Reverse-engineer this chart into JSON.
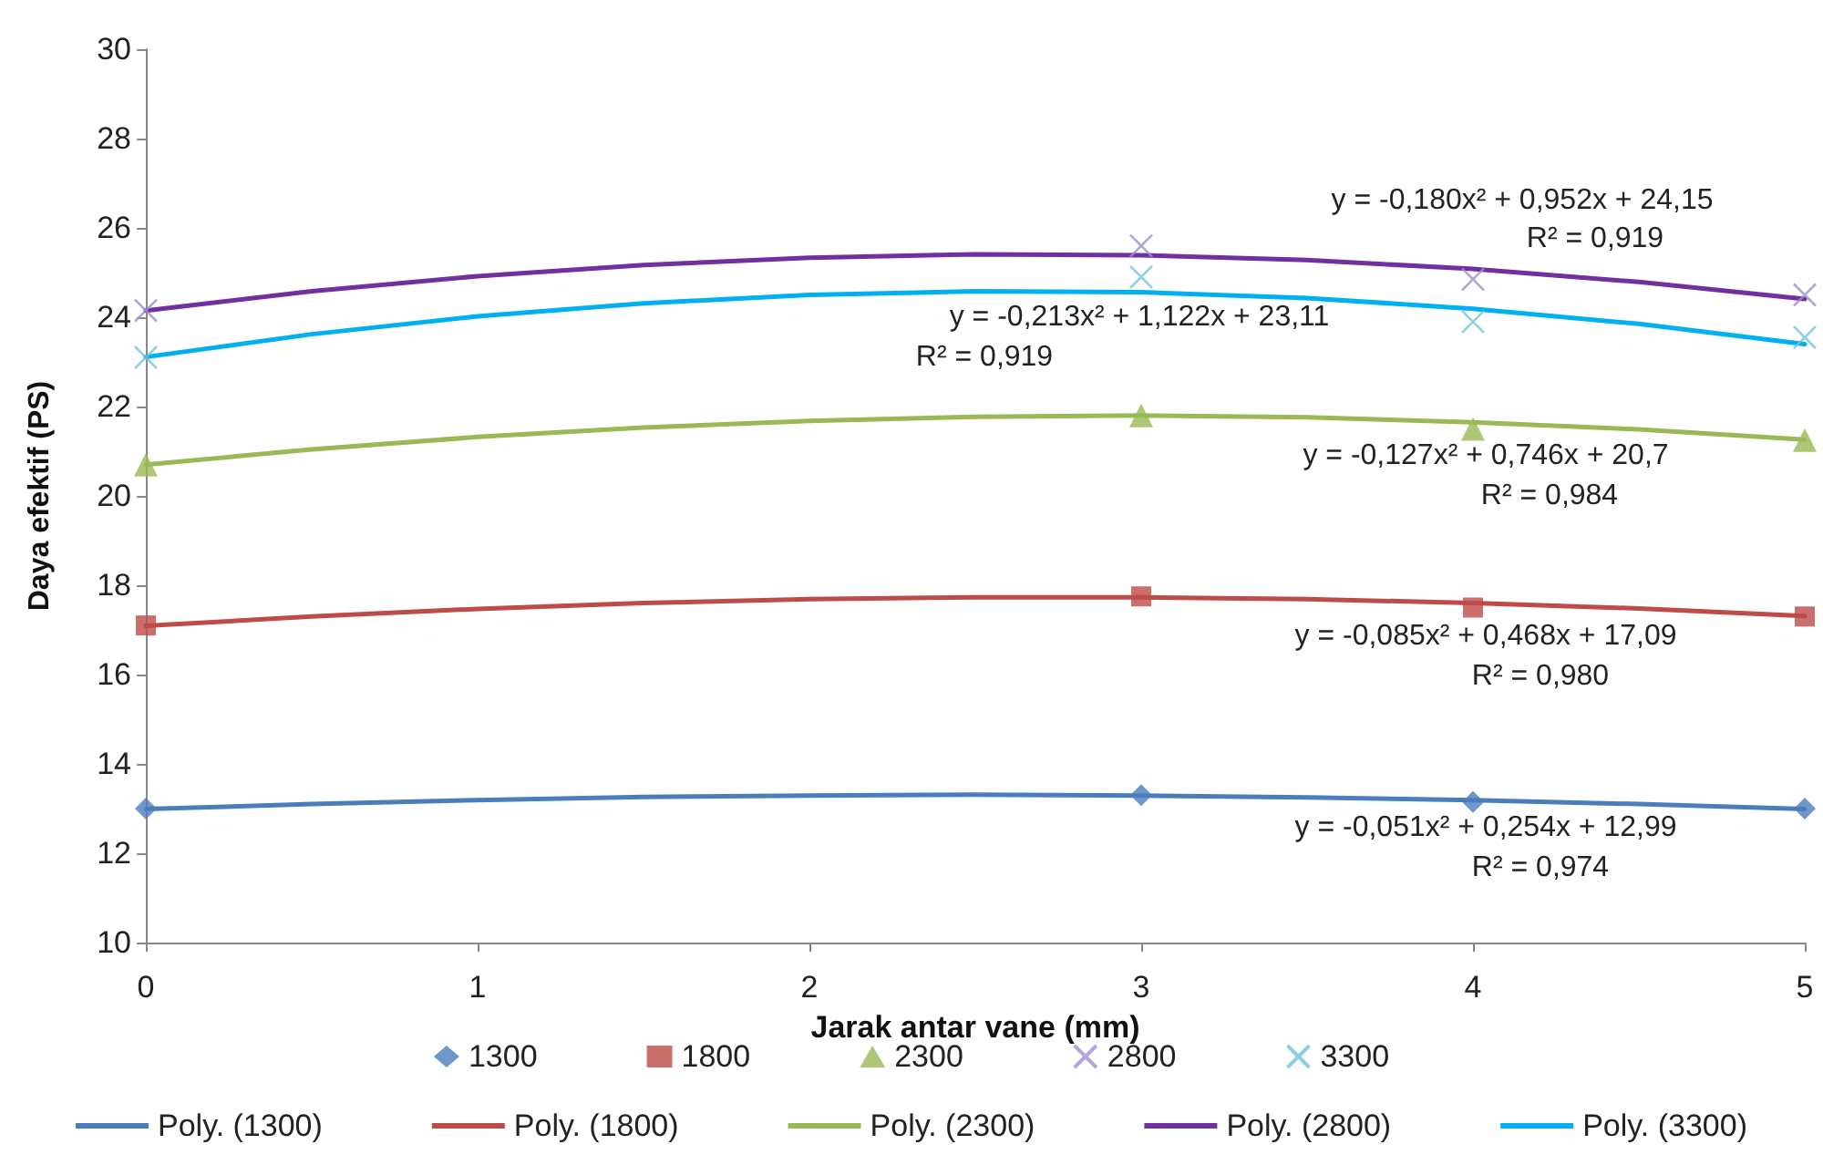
{
  "chart_data": {
    "type": "scatter",
    "xlabel": "Jarak antar vane (mm)",
    "ylabel": "Daya efektif (PS)",
    "xlim": [
      0,
      5
    ],
    "xticks": [
      0,
      1,
      2,
      3,
      4,
      5
    ],
    "ylim": [
      10,
      30
    ],
    "yticks": [
      10,
      12,
      14,
      16,
      18,
      20,
      22,
      24,
      26,
      28,
      30
    ],
    "grid": false,
    "legend": "bottom",
    "series": [
      {
        "name": "1300",
        "marker": "diamond",
        "color": "#4a7ebb",
        "x": [
          0,
          3,
          4,
          5
        ],
        "values": [
          13.0,
          13.3,
          13.15,
          13.0
        ]
      },
      {
        "name": "1800",
        "marker": "square",
        "color": "#be4b48",
        "x": [
          0,
          3,
          4,
          5
        ],
        "values": [
          17.1,
          17.75,
          17.5,
          17.3
        ]
      },
      {
        "name": "2300",
        "marker": "triangle",
        "color": "#98b954",
        "x": [
          0,
          3,
          4,
          5
        ],
        "values": [
          20.7,
          21.8,
          21.5,
          21.25
        ]
      },
      {
        "name": "2800",
        "marker": "cross",
        "color": "#a18fcf",
        "x": [
          0,
          3,
          4,
          5
        ],
        "values": [
          24.15,
          25.6,
          24.85,
          24.5
        ]
      },
      {
        "name": "3300",
        "marker": "cross",
        "color": "#6fc3dc",
        "x": [
          0,
          3,
          4,
          5
        ],
        "values": [
          23.1,
          24.9,
          23.9,
          23.55
        ]
      },
      {
        "name": "Poly. (1300)",
        "type": "line",
        "marker": "none",
        "color": "#4a7ebb",
        "x": [
          0,
          0.5,
          1,
          1.5,
          2,
          2.5,
          3,
          3.5,
          4,
          4.5,
          5
        ],
        "values": [
          12.99,
          13.1,
          13.19,
          13.26,
          13.29,
          13.31,
          13.29,
          13.25,
          13.19,
          13.1,
          12.99
        ]
      },
      {
        "name": "Poly. (1800)",
        "type": "line",
        "marker": "none",
        "color": "#be4b48",
        "x": [
          0,
          0.5,
          1,
          1.5,
          2,
          2.5,
          3,
          3.5,
          4,
          4.5,
          5
        ],
        "values": [
          17.09,
          17.3,
          17.47,
          17.6,
          17.69,
          17.73,
          17.73,
          17.69,
          17.6,
          17.48,
          17.31
        ]
      },
      {
        "name": "Poly. (2300)",
        "type": "line",
        "marker": "none",
        "color": "#98b954",
        "x": [
          0,
          0.5,
          1,
          1.5,
          2,
          2.5,
          3,
          3.5,
          4,
          4.5,
          5
        ],
        "values": [
          20.7,
          21.04,
          21.32,
          21.53,
          21.68,
          21.77,
          21.8,
          21.76,
          21.65,
          21.49,
          21.26
        ]
      },
      {
        "name": "Poly. (2800)",
        "type": "line",
        "marker": "none",
        "color": "#7030a0",
        "x": [
          0,
          0.5,
          1,
          1.5,
          2,
          2.5,
          3,
          3.5,
          4,
          4.5,
          5
        ],
        "values": [
          24.15,
          24.58,
          24.92,
          25.17,
          25.33,
          25.41,
          25.39,
          25.28,
          25.08,
          24.79,
          24.41
        ]
      },
      {
        "name": "Poly. (3300)",
        "type": "line",
        "marker": "none",
        "color": "#00b0f0",
        "x": [
          0,
          0.5,
          1,
          1.5,
          2,
          2.5,
          3,
          3.5,
          4,
          4.5,
          5
        ],
        "values": [
          23.11,
          23.62,
          24.02,
          24.31,
          24.5,
          24.58,
          24.56,
          24.43,
          24.19,
          23.85,
          23.4
        ]
      }
    ],
    "annotations": [
      "y = -0,180x² + 0,952x + 24,15",
      "R² = 0,919",
      "y = -0,213x² + 1,122x + 23,11",
      "R² = 0,919",
      "y = -0,127x² + 0,746x + 20,7",
      "R² = 0,984",
      "y = -0,085x² + 0,468x + 17,09",
      "R² = 0,980",
      "y = -0,051x² + 0,254x + 12,99",
      "R² = 0,974"
    ]
  }
}
